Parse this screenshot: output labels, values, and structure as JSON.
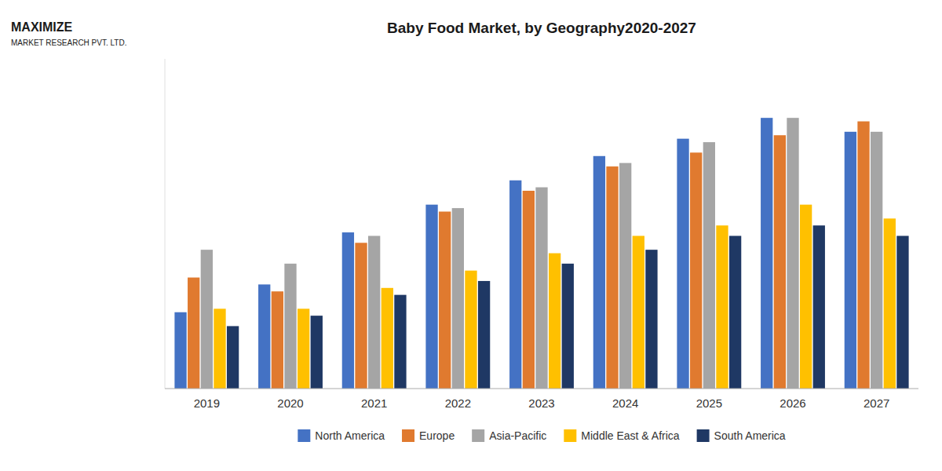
{
  "chart_data": {
    "type": "bar",
    "title": "Baby Food Market, by Geography2020-2027",
    "categories": [
      "2019",
      "2020",
      "2021",
      "2022",
      "2023",
      "2024",
      "2025",
      "2026",
      "2027"
    ],
    "series": [
      {
        "name": "North America",
        "color": "#4472C4",
        "values": [
          22,
          30,
          45,
          53,
          60,
          67,
          72,
          78,
          74
        ]
      },
      {
        "name": "Europe",
        "color": "#E07A2F",
        "values": [
          32,
          28,
          42,
          51,
          57,
          64,
          68,
          73,
          77
        ]
      },
      {
        "name": "Asia-Pacific",
        "color": "#A5A5A5",
        "values": [
          40,
          36,
          44,
          52,
          58,
          65,
          71,
          78,
          74
        ]
      },
      {
        "name": "Middle East & Africa",
        "color": "#FFC000",
        "values": [
          23,
          23,
          29,
          34,
          39,
          44,
          47,
          53,
          49
        ]
      },
      {
        "name": "South America",
        "color": "#1F3864",
        "values": [
          18,
          21,
          27,
          31,
          36,
          40,
          44,
          47,
          44
        ]
      }
    ],
    "ylim": [
      0,
      95
    ],
    "grid": false,
    "legend": "bottom",
    "tick_labels": "x",
    "annotations": [
      "MAXIMIZE",
      "MARKET RESEARCH PVT. LTD."
    ]
  }
}
